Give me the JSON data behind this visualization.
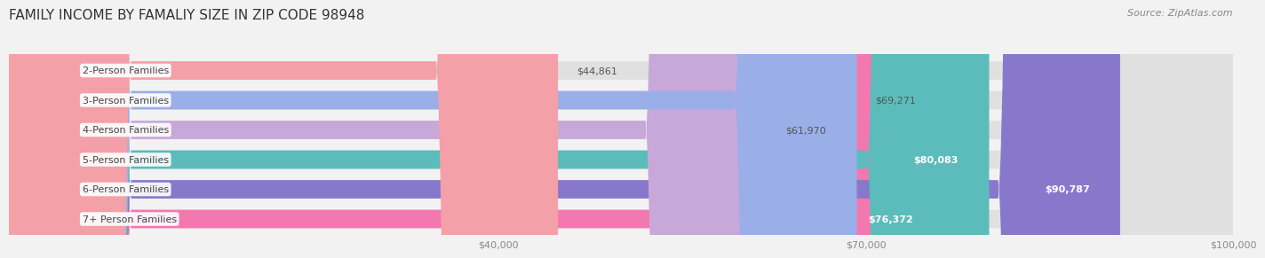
{
  "title": "FAMILY INCOME BY FAMALIY SIZE IN ZIP CODE 98948",
  "source": "Source: ZipAtlas.com",
  "categories": [
    "2-Person Families",
    "3-Person Families",
    "4-Person Families",
    "5-Person Families",
    "6-Person Families",
    "7+ Person Families"
  ],
  "values": [
    44861,
    69271,
    61970,
    80083,
    90787,
    76372
  ],
  "bar_colors": [
    "#f4a0a8",
    "#9aaee8",
    "#c8a8d8",
    "#5bbcbb",
    "#8878cc",
    "#f478b0"
  ],
  "value_labels": [
    "$44,861",
    "$69,271",
    "$61,970",
    "$80,083",
    "$90,787",
    "$76,372"
  ],
  "label_inside": [
    false,
    false,
    false,
    true,
    true,
    true
  ],
  "xmax": 100000,
  "xticks": [
    0,
    40000,
    70000,
    100000
  ],
  "xticklabels": [
    "",
    "$40,000",
    "$70,000",
    "$100,000"
  ],
  "background_color": "#f2f2f2",
  "bar_bg_color": "#e0e0e0",
  "title_fontsize": 11,
  "source_fontsize": 8,
  "label_fontsize": 8,
  "tick_fontsize": 8
}
